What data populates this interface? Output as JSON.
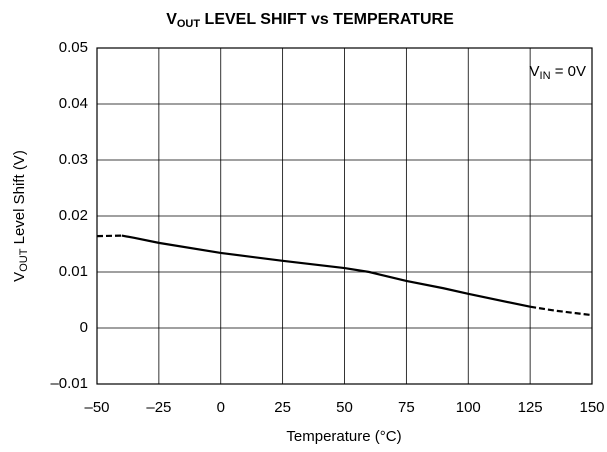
{
  "chart_data": {
    "type": "line",
    "title": [
      "V",
      "OUT",
      " LEVEL SHIFT vs TEMPERATURE"
    ],
    "ylabel": [
      "V",
      "OUT",
      " Level Shift (V)"
    ],
    "xlabel": "Temperature (°C)",
    "annotation": [
      "V",
      "IN",
      " = 0V"
    ],
    "xlim": [
      -50,
      150
    ],
    "xticks": [
      {
        "value": -50,
        "label": "–50"
      },
      {
        "value": -25,
        "label": "–25"
      },
      0,
      25,
      50,
      75,
      100,
      125,
      150
    ],
    "ylim": [
      -0.01,
      0.05
    ],
    "yticks": [
      {
        "value": -0.01,
        "label": "–0.01"
      },
      0,
      0.01,
      0.02,
      0.03,
      0.04,
      0.05
    ],
    "grid": true,
    "color": "#000000",
    "series": [
      {
        "style": "dashed",
        "x": [
          -50,
          -40
        ],
        "values": [
          0.0164,
          0.0165
        ]
      },
      {
        "style": "solid",
        "x": [
          -40,
          -35,
          -25,
          0,
          25,
          50,
          60,
          75,
          90,
          100,
          125
        ],
        "values": [
          0.0165,
          0.0161,
          0.0152,
          0.0134,
          0.012,
          0.0107,
          0.01,
          0.0084,
          0.0071,
          0.0061,
          0.0038
        ]
      },
      {
        "style": "dashed",
        "x": [
          125,
          135,
          150
        ],
        "values": [
          0.0038,
          0.0031,
          0.0023
        ]
      }
    ]
  }
}
